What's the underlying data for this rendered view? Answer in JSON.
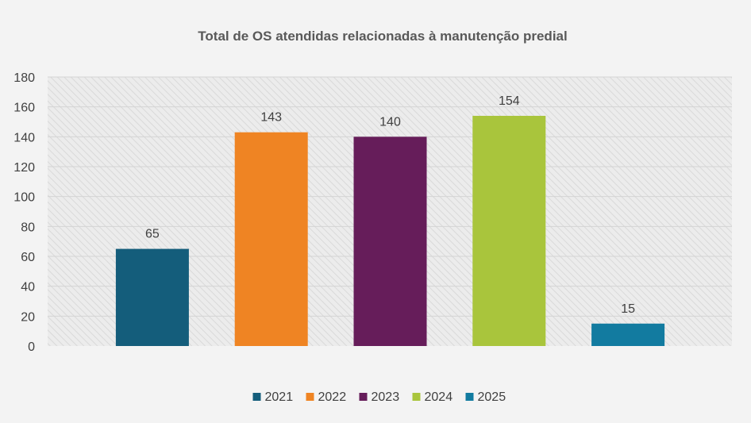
{
  "chart_data": {
    "type": "bar",
    "title": "Total de OS atendidas relacionadas à manutenção predial",
    "categories": [
      "2021",
      "2022",
      "2023",
      "2024",
      "2025"
    ],
    "series": [
      {
        "name": "2021",
        "value": 65,
        "color": "#145d7b"
      },
      {
        "name": "2022",
        "value": 143,
        "color": "#ef8423"
      },
      {
        "name": "2023",
        "value": 140,
        "color": "#661d5a"
      },
      {
        "name": "2024",
        "value": 154,
        "color": "#a9c53c"
      },
      {
        "name": "2025",
        "value": 15,
        "color": "#127ba0"
      }
    ],
    "ylim": [
      0,
      180
    ],
    "yticks": [
      "0",
      "20",
      "40",
      "60",
      "80",
      "100",
      "120",
      "140",
      "160",
      "180"
    ],
    "grid": true,
    "legend_position": "bottom",
    "data_labels": true
  }
}
